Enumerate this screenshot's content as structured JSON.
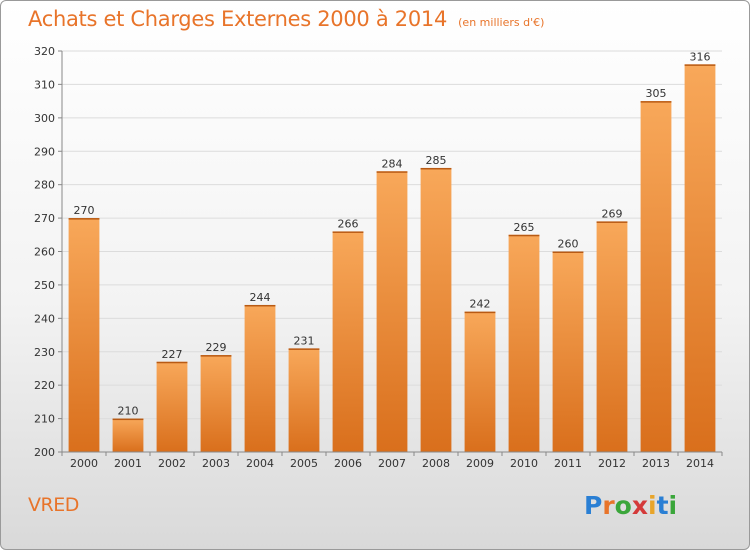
{
  "header": {
    "title": "Achats et Charges Externes 2000 à 2014",
    "subtitle": "(en milliers d'€)"
  },
  "footer": {
    "commune": "VRED",
    "logo_text": "Proxiti",
    "logo_colors": [
      "#2a7fd4",
      "#e8742a",
      "#3aa63a",
      "#d43a3a",
      "#e8a52a",
      "#2a7fd4",
      "#3aa63a"
    ]
  },
  "colors": {
    "bar_light": "#f8a85a",
    "bar_dark": "#d96f1c",
    "accent": "#e8742a"
  },
  "chart_data": {
    "type": "bar",
    "title": "Achats et Charges Externes 2000 à 2014",
    "subtitle": "(en milliers d'€)",
    "categories": [
      "2000",
      "2001",
      "2002",
      "2003",
      "2004",
      "2005",
      "2006",
      "2007",
      "2008",
      "2009",
      "2010",
      "2011",
      "2012",
      "2013",
      "2014"
    ],
    "values": [
      270,
      210,
      227,
      229,
      244,
      231,
      266,
      284,
      285,
      242,
      265,
      260,
      269,
      305,
      316
    ],
    "ylim": [
      200,
      320
    ],
    "yticks": [
      200,
      210,
      220,
      230,
      240,
      250,
      260,
      270,
      280,
      290,
      300,
      310,
      320
    ],
    "xlabel": "",
    "ylabel": "",
    "grid": true
  }
}
